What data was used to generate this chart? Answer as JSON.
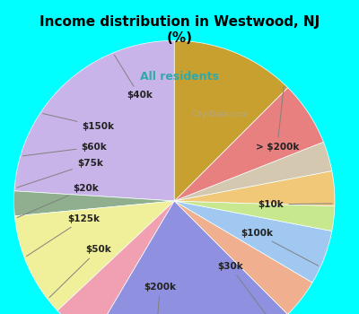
{
  "title": "Income distribution in Westwood, NJ\n(%)",
  "subtitle": "All residents",
  "title_color": "#000000",
  "subtitle_color": "#2eaaaa",
  "background_top": "#00ffff",
  "background_chart": "#e8f5e9",
  "labels": [
    "> $200k",
    "$10k",
    "$100k",
    "$30k",
    "$200k",
    "$50k",
    "$125k",
    "$20k",
    "$75k",
    "$60k",
    "$150k",
    "$40k"
  ],
  "sizes": [
    24.0,
    2.5,
    10.5,
    4.5,
    21.0,
    4.0,
    5.5,
    2.5,
    3.5,
    3.0,
    6.5,
    12.5
  ],
  "colors": [
    "#c8b4e8",
    "#8faf8f",
    "#f0f09a",
    "#f0a0b0",
    "#9090e0",
    "#f0b090",
    "#a0c8f0",
    "#c8e890",
    "#f0c878",
    "#d4c8b0",
    "#e88080",
    "#c8a030"
  ],
  "startangle": 90,
  "label_fontsize": 7.5,
  "label_color": "#222222"
}
